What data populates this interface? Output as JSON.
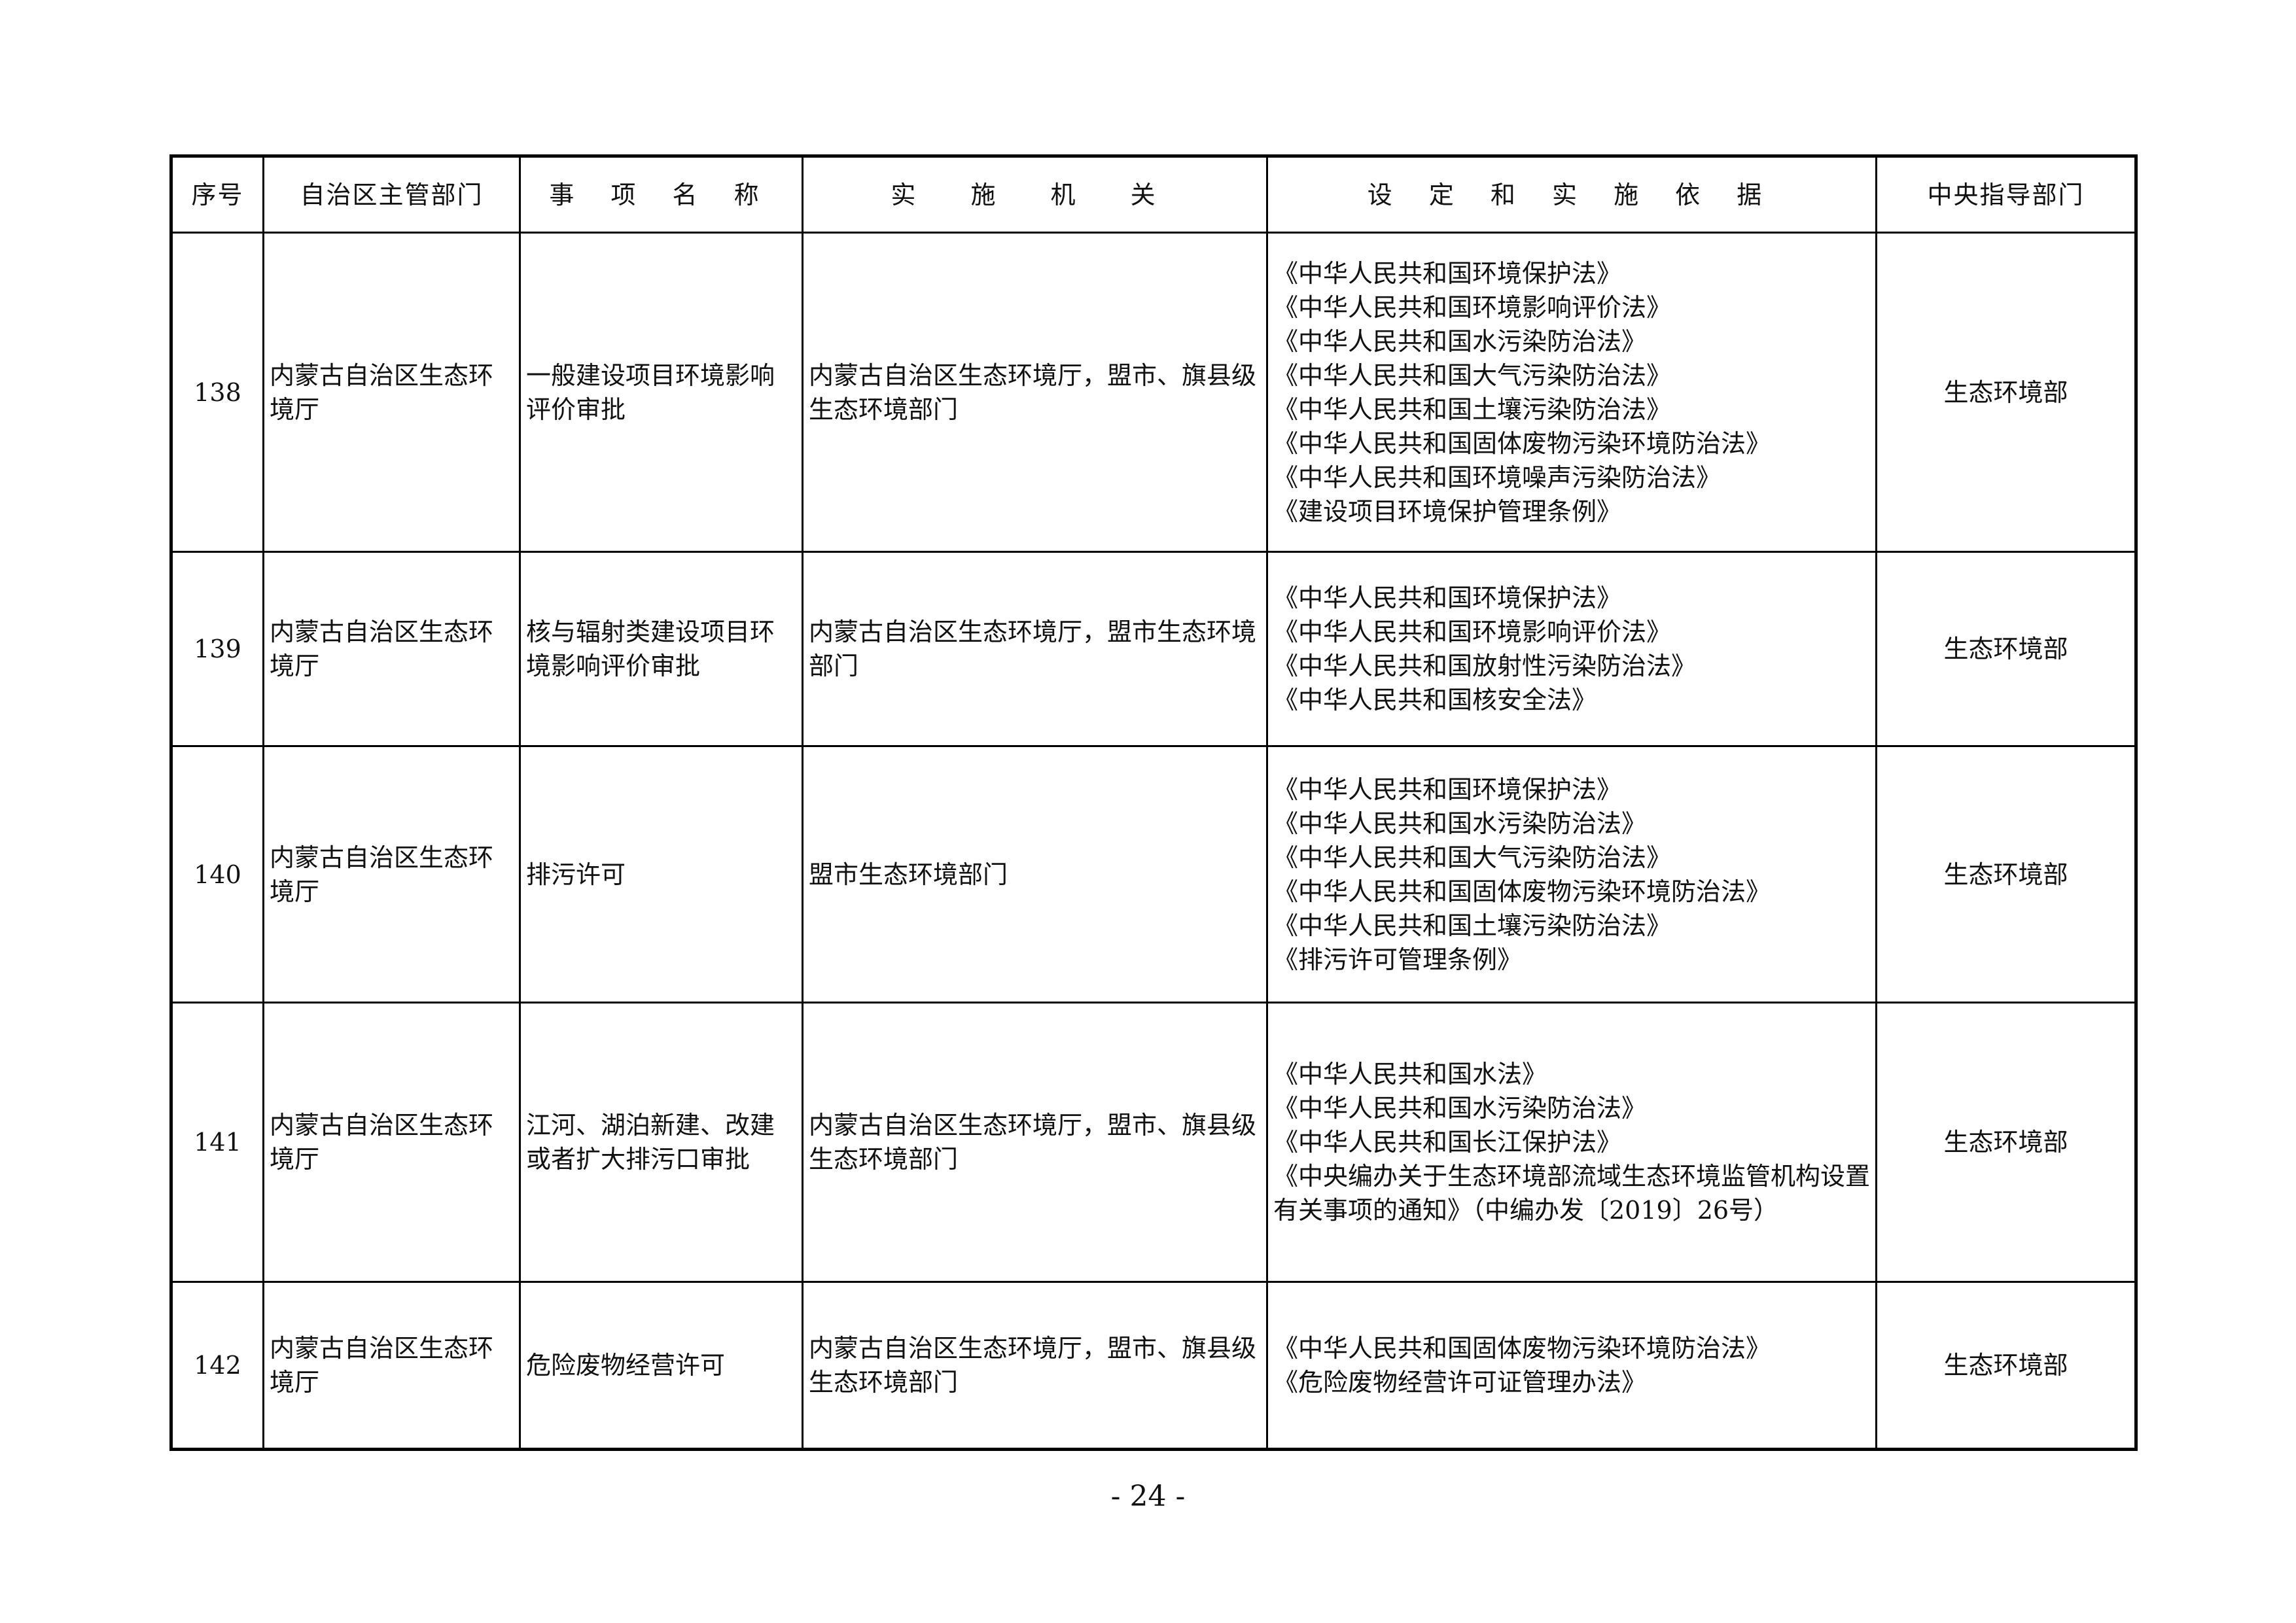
{
  "table": {
    "headers": [
      "序号",
      "自治区主管部门",
      "事 项 名 称",
      "实 施 机 关",
      "设 定 和 实 施 依 据",
      "中央指导部门"
    ],
    "rows": [
      {
        "no": "138",
        "dept": "内蒙古自治区生态环境厅",
        "item": "一般建设项目环境影响评价审批",
        "agency": "内蒙古自治区生态环境厅，盟市、旗县级生态环境部门",
        "basis": [
          "《中华人民共和国环境保护法》",
          "《中华人民共和国环境影响评价法》",
          "《中华人民共和国水污染防治法》",
          "《中华人民共和国大气污染防治法》",
          "《中华人民共和国土壤污染防治法》",
          "《中华人民共和国固体废物污染环境防治法》",
          "《中华人民共和国环境噪声污染防治法》",
          "《建设项目环境保护管理条例》"
        ],
        "central": "生态环境部"
      },
      {
        "no": "139",
        "dept": "内蒙古自治区生态环境厅",
        "item": "核与辐射类建设项目环境影响评价审批",
        "agency": "内蒙古自治区生态环境厅，盟市生态环境部门",
        "basis": [
          "《中华人民共和国环境保护法》",
          "《中华人民共和国环境影响评价法》",
          "《中华人民共和国放射性污染防治法》",
          "《中华人民共和国核安全法》"
        ],
        "central": "生态环境部"
      },
      {
        "no": "140",
        "dept": "内蒙古自治区生态环境厅",
        "item": "排污许可",
        "agency": "盟市生态环境部门",
        "basis": [
          "《中华人民共和国环境保护法》",
          "《中华人民共和国水污染防治法》",
          "《中华人民共和国大气污染防治法》",
          "《中华人民共和国固体废物污染环境防治法》",
          "《中华人民共和国土壤污染防治法》",
          "《排污许可管理条例》"
        ],
        "central": "生态环境部"
      },
      {
        "no": "141",
        "dept": "内蒙古自治区生态环境厅",
        "item": "江河、湖泊新建、改建或者扩大排污口审批",
        "agency": "内蒙古自治区生态环境厅，盟市、旗县级生态环境部门",
        "basis": [
          "《中华人民共和国水法》",
          "《中华人民共和国水污染防治法》",
          "《中华人民共和国长江保护法》",
          "《中央编办关于生态环境部流域生态环境监管机构设置有关事项的通知》（中编办发〔2019〕26号）"
        ],
        "central": "生态环境部"
      },
      {
        "no": "142",
        "dept": "内蒙古自治区生态环境厅",
        "item": "危险废物经营许可",
        "agency": "内蒙古自治区生态环境厅，盟市、旗县级生态环境部门",
        "basis": [
          "《中华人民共和国固体废物污染环境防治法》",
          "《危险废物经营许可证管理办法》"
        ],
        "central": "生态环境部"
      }
    ]
  },
  "footer": {
    "page_number": "- 24 -"
  }
}
